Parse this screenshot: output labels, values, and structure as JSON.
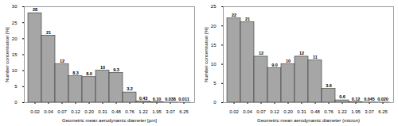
{
  "chart_data": [
    {
      "type": "bar",
      "categories": [
        "0.02",
        "0.04",
        "0.07",
        "0.12",
        "0.20",
        "0.31",
        "0.48",
        "0.76",
        "1.22",
        "1.95",
        "3.07",
        "6.25"
      ],
      "values": [
        28,
        21,
        12,
        8.3,
        8.0,
        10,
        9.3,
        3.2,
        0.43,
        0.1,
        0.038,
        0.011
      ],
      "value_labels": [
        "28",
        "21",
        "12",
        "8.3",
        "8.0",
        "10",
        "9.3",
        "3.2",
        "0.43",
        "0.10",
        "0.038",
        "0.011"
      ],
      "data_labels": true,
      "x_label": "Geometric mean aerodynamic diameter [µm]",
      "y_label": "Number concentration [%]",
      "ylim": [
        0,
        30
      ],
      "yticks": [
        0,
        5,
        10,
        15,
        20,
        25,
        30
      ],
      "color": "#a6a6a6"
    },
    {
      "type": "bar",
      "categories": [
        "0.02",
        "0.04",
        "0.07",
        "0.12",
        "0.20",
        "0.31",
        "0.48",
        "0.76",
        "1.22",
        "1.95",
        "3.07",
        "6.25"
      ],
      "values": [
        22,
        21,
        12,
        9.0,
        10,
        12,
        11,
        3.6,
        0.6,
        0.12,
        0.045,
        0.02
      ],
      "value_labels": [
        "22",
        "21",
        "12",
        "9.0",
        "10",
        "12",
        "11",
        "3.6",
        "0.6",
        "0.12",
        "0.045",
        "0.020"
      ],
      "data_labels": true,
      "x_label": "Geometric mean aerodynamic diameter (micron)",
      "y_label": "Number concentration [%]",
      "ylim": [
        0,
        25
      ],
      "yticks": [
        0,
        5,
        10,
        15,
        20,
        25
      ],
      "color": "#a6a6a6"
    }
  ]
}
